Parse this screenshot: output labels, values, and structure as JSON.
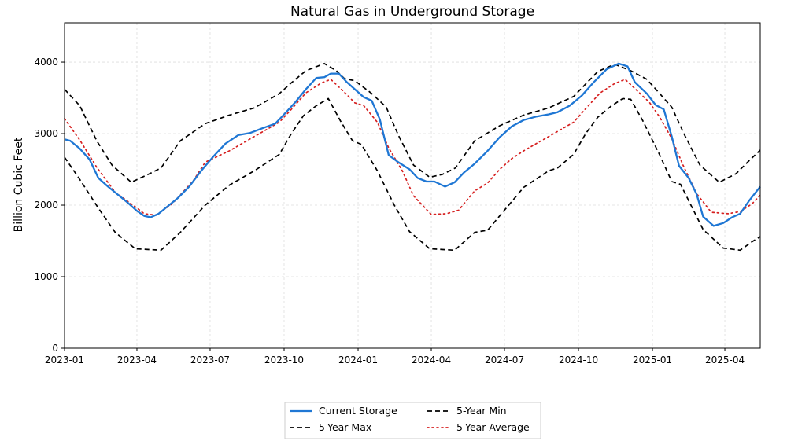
{
  "chart_data": {
    "type": "line",
    "title": "Natural Gas in Underground Storage",
    "xlabel": "",
    "ylabel": "Billion Cubic Feet",
    "xlim": [
      "2023-01-01",
      "2025-05-15"
    ],
    "ylim": [
      0,
      4550
    ],
    "grid": true,
    "legend_position": "bottom-center",
    "x_tick_labels": [
      "2023-01",
      "2023-04",
      "2023-07",
      "2023-10",
      "2024-01",
      "2024-04",
      "2024-07",
      "2024-10",
      "2025-01",
      "2025-04"
    ],
    "y_ticks": [
      0,
      1000,
      2000,
      3000,
      4000
    ],
    "series": [
      {
        "name": "Current Storage",
        "color": "#1f77d4",
        "style": "solid",
        "points": [
          [
            "2023-01-01",
            2920
          ],
          [
            "2023-01-08",
            2900
          ],
          [
            "2023-01-20",
            2790
          ],
          [
            "2023-02-01",
            2640
          ],
          [
            "2023-02-12",
            2380
          ],
          [
            "2023-02-24",
            2260
          ],
          [
            "2023-03-08",
            2150
          ],
          [
            "2023-03-20",
            2040
          ],
          [
            "2023-04-01",
            1920
          ],
          [
            "2023-04-10",
            1850
          ],
          [
            "2023-04-18",
            1830
          ],
          [
            "2023-04-28",
            1880
          ],
          [
            "2023-05-10",
            1990
          ],
          [
            "2023-05-22",
            2100
          ],
          [
            "2023-06-05",
            2260
          ],
          [
            "2023-06-20",
            2480
          ],
          [
            "2023-07-05",
            2680
          ],
          [
            "2023-07-20",
            2860
          ],
          [
            "2023-08-05",
            2980
          ],
          [
            "2023-08-20",
            3010
          ],
          [
            "2023-09-05",
            3080
          ],
          [
            "2023-09-20",
            3140
          ],
          [
            "2023-10-01",
            3270
          ],
          [
            "2023-10-15",
            3440
          ],
          [
            "2023-10-28",
            3620
          ],
          [
            "2023-11-10",
            3780
          ],
          [
            "2023-11-20",
            3790
          ],
          [
            "2023-11-28",
            3840
          ],
          [
            "2023-12-08",
            3840
          ],
          [
            "2023-12-18",
            3720
          ],
          [
            "2023-12-28",
            3620
          ],
          [
            "2024-01-08",
            3510
          ],
          [
            "2024-01-18",
            3460
          ],
          [
            "2024-01-28",
            3200
          ],
          [
            "2024-02-08",
            2700
          ],
          [
            "2024-02-20",
            2600
          ],
          [
            "2024-03-05",
            2500
          ],
          [
            "2024-03-15",
            2380
          ],
          [
            "2024-03-26",
            2330
          ],
          [
            "2024-04-05",
            2330
          ],
          [
            "2024-04-18",
            2260
          ],
          [
            "2024-04-30",
            2320
          ],
          [
            "2024-05-12",
            2460
          ],
          [
            "2024-05-25",
            2580
          ],
          [
            "2024-06-10",
            2760
          ],
          [
            "2024-06-25",
            2950
          ],
          [
            "2024-07-10",
            3100
          ],
          [
            "2024-07-25",
            3190
          ],
          [
            "2024-08-10",
            3240
          ],
          [
            "2024-08-25",
            3270
          ],
          [
            "2024-09-05",
            3300
          ],
          [
            "2024-09-20",
            3390
          ],
          [
            "2024-10-05",
            3530
          ],
          [
            "2024-10-20",
            3720
          ],
          [
            "2024-11-05",
            3900
          ],
          [
            "2024-11-20",
            3980
          ],
          [
            "2024-12-01",
            3940
          ],
          [
            "2024-12-10",
            3720
          ],
          [
            "2024-12-25",
            3560
          ],
          [
            "2025-01-05",
            3400
          ],
          [
            "2025-01-15",
            3340
          ],
          [
            "2025-01-25",
            2960
          ],
          [
            "2025-02-03",
            2550
          ],
          [
            "2025-02-15",
            2380
          ],
          [
            "2025-02-25",
            2150
          ],
          [
            "2025-03-05",
            1840
          ],
          [
            "2025-03-18",
            1710
          ],
          [
            "2025-03-30",
            1750
          ],
          [
            "2025-04-10",
            1830
          ],
          [
            "2025-04-20",
            1880
          ],
          [
            "2025-05-01",
            2060
          ],
          [
            "2025-05-15",
            2260
          ]
        ]
      },
      {
        "name": "5-Year Max",
        "color": "#000000",
        "style": "dashed",
        "points": [
          [
            "2023-01-01",
            3620
          ],
          [
            "2023-01-20",
            3390
          ],
          [
            "2023-02-10",
            2900
          ],
          [
            "2023-03-01",
            2560
          ],
          [
            "2023-03-25",
            2320
          ],
          [
            "2023-04-15",
            2430
          ],
          [
            "2023-05-01",
            2520
          ],
          [
            "2023-05-25",
            2900
          ],
          [
            "2023-06-25",
            3140
          ],
          [
            "2023-07-25",
            3260
          ],
          [
            "2023-08-25",
            3360
          ],
          [
            "2023-09-25",
            3560
          ],
          [
            "2023-10-10",
            3710
          ],
          [
            "2023-10-28",
            3880
          ],
          [
            "2023-11-20",
            3980
          ],
          [
            "2023-12-05",
            3880
          ],
          [
            "2023-12-15",
            3770
          ],
          [
            "2023-12-28",
            3740
          ],
          [
            "2024-01-18",
            3560
          ],
          [
            "2024-02-05",
            3370
          ],
          [
            "2024-02-20",
            2980
          ],
          [
            "2024-03-10",
            2560
          ],
          [
            "2024-03-30",
            2390
          ],
          [
            "2024-04-15",
            2430
          ],
          [
            "2024-05-01",
            2520
          ],
          [
            "2024-05-25",
            2900
          ],
          [
            "2024-06-25",
            3110
          ],
          [
            "2024-07-25",
            3260
          ],
          [
            "2024-08-25",
            3360
          ],
          [
            "2024-09-25",
            3520
          ],
          [
            "2024-10-25",
            3870
          ],
          [
            "2024-11-15",
            3970
          ],
          [
            "2024-12-05",
            3880
          ],
          [
            "2024-12-25",
            3760
          ],
          [
            "2025-01-10",
            3560
          ],
          [
            "2025-01-25",
            3370
          ],
          [
            "2025-02-10",
            2980
          ],
          [
            "2025-03-01",
            2560
          ],
          [
            "2025-03-25",
            2320
          ],
          [
            "2025-04-15",
            2440
          ],
          [
            "2025-05-01",
            2620
          ],
          [
            "2025-05-15",
            2770
          ]
        ]
      },
      {
        "name": "5-Year Min",
        "color": "#000000",
        "style": "dashed",
        "points": [
          [
            "2023-01-01",
            2670
          ],
          [
            "2023-01-20",
            2360
          ],
          [
            "2023-02-12",
            1960
          ],
          [
            "2023-03-05",
            1620
          ],
          [
            "2023-03-30",
            1390
          ],
          [
            "2023-05-01",
            1370
          ],
          [
            "2023-05-25",
            1620
          ],
          [
            "2023-06-25",
            2000
          ],
          [
            "2023-07-25",
            2280
          ],
          [
            "2023-08-25",
            2480
          ],
          [
            "2023-09-25",
            2710
          ],
          [
            "2023-10-10",
            3000
          ],
          [
            "2023-10-25",
            3250
          ],
          [
            "2023-11-10",
            3390
          ],
          [
            "2023-11-25",
            3490
          ],
          [
            "2023-12-10",
            3180
          ],
          [
            "2023-12-25",
            2900
          ],
          [
            "2024-01-05",
            2850
          ],
          [
            "2024-01-25",
            2480
          ],
          [
            "2024-02-15",
            2000
          ],
          [
            "2024-03-05",
            1630
          ],
          [
            "2024-03-30",
            1390
          ],
          [
            "2024-04-30",
            1370
          ],
          [
            "2024-05-25",
            1620
          ],
          [
            "2024-06-10",
            1650
          ],
          [
            "2024-06-25",
            1850
          ],
          [
            "2024-07-25",
            2250
          ],
          [
            "2024-08-25",
            2480
          ],
          [
            "2024-09-05",
            2520
          ],
          [
            "2024-09-25",
            2710
          ],
          [
            "2024-10-10",
            3000
          ],
          [
            "2024-10-25",
            3230
          ],
          [
            "2024-11-10",
            3380
          ],
          [
            "2024-11-25",
            3490
          ],
          [
            "2024-12-05",
            3480
          ],
          [
            "2024-12-20",
            3180
          ],
          [
            "2025-01-10",
            2700
          ],
          [
            "2025-01-25",
            2330
          ],
          [
            "2025-02-05",
            2290
          ],
          [
            "2025-02-20",
            1950
          ],
          [
            "2025-03-05",
            1660
          ],
          [
            "2025-03-30",
            1400
          ],
          [
            "2025-04-20",
            1370
          ],
          [
            "2025-05-05",
            1490
          ],
          [
            "2025-05-15",
            1560
          ]
        ]
      },
      {
        "name": "5-Year Average",
        "color": "#d62020",
        "style": "dotted",
        "points": [
          [
            "2023-01-01",
            3210
          ],
          [
            "2023-01-20",
            2910
          ],
          [
            "2023-02-10",
            2530
          ],
          [
            "2023-03-05",
            2180
          ],
          [
            "2023-04-01",
            1960
          ],
          [
            "2023-04-10",
            1880
          ],
          [
            "2023-04-25",
            1860
          ],
          [
            "2023-05-15",
            2020
          ],
          [
            "2023-06-10",
            2340
          ],
          [
            "2023-06-25",
            2600
          ],
          [
            "2023-07-25",
            2760
          ],
          [
            "2023-08-25",
            2960
          ],
          [
            "2023-09-25",
            3160
          ],
          [
            "2023-10-10",
            3340
          ],
          [
            "2023-10-28",
            3570
          ],
          [
            "2023-11-15",
            3700
          ],
          [
            "2023-11-28",
            3760
          ],
          [
            "2023-12-15",
            3580
          ],
          [
            "2023-12-28",
            3430
          ],
          [
            "2024-01-08",
            3390
          ],
          [
            "2024-01-25",
            3160
          ],
          [
            "2024-02-08",
            2800
          ],
          [
            "2024-02-25",
            2480
          ],
          [
            "2024-03-10",
            2130
          ],
          [
            "2024-04-01",
            1870
          ],
          [
            "2024-04-20",
            1880
          ],
          [
            "2024-05-05",
            1930
          ],
          [
            "2024-05-25",
            2200
          ],
          [
            "2024-06-10",
            2310
          ],
          [
            "2024-06-25",
            2500
          ],
          [
            "2024-07-10",
            2650
          ],
          [
            "2024-07-25",
            2760
          ],
          [
            "2024-08-25",
            2960
          ],
          [
            "2024-09-25",
            3160
          ],
          [
            "2024-10-10",
            3350
          ],
          [
            "2024-10-28",
            3570
          ],
          [
            "2024-11-15",
            3700
          ],
          [
            "2024-11-28",
            3760
          ],
          [
            "2024-12-15",
            3580
          ],
          [
            "2024-12-28",
            3440
          ],
          [
            "2025-01-10",
            3230
          ],
          [
            "2025-01-25",
            2930
          ],
          [
            "2025-02-08",
            2560
          ],
          [
            "2025-02-25",
            2160
          ],
          [
            "2025-03-15",
            1900
          ],
          [
            "2025-04-05",
            1880
          ],
          [
            "2025-04-20",
            1910
          ],
          [
            "2025-05-05",
            2020
          ],
          [
            "2025-05-15",
            2140
          ]
        ]
      }
    ]
  }
}
